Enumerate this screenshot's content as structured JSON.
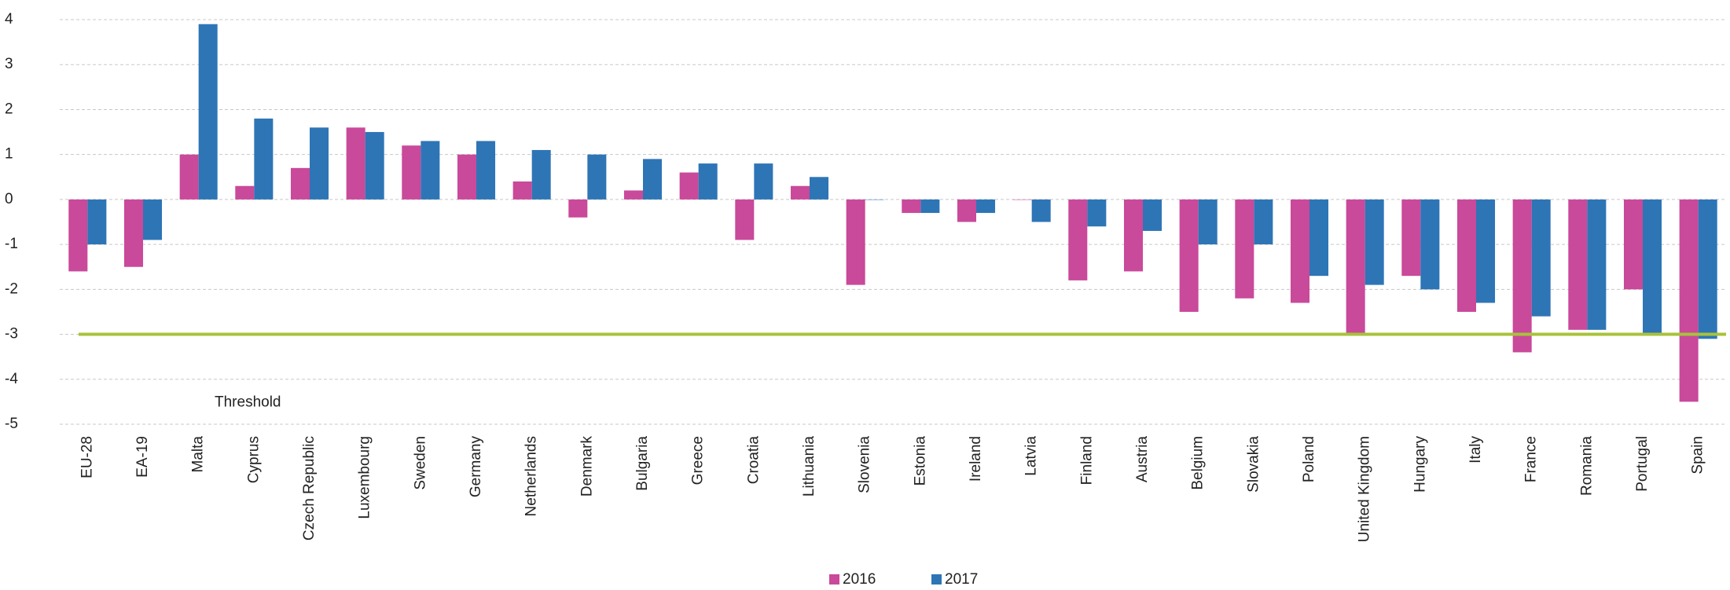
{
  "chart_data": {
    "type": "bar",
    "categories": [
      "EU-28",
      "EA-19",
      "Malta",
      "Cyprus",
      "Czech Republic",
      "Luxembourg",
      "Sweden",
      "Germany",
      "Netherlands",
      "Denmark",
      "Bulgaria",
      "Greece",
      "Croatia",
      "Lithuania",
      "Slovenia",
      "Estonia",
      "Ireland",
      "Latvia",
      "Finland",
      "Austria",
      "Belgium",
      "Slovakia",
      "Poland",
      "United Kingdom",
      "Hungary",
      "Italy",
      "France",
      "Romania",
      "Portugal",
      "Spain"
    ],
    "series": [
      {
        "name": "2016",
        "color": "#c9499a",
        "values": [
          -1.6,
          -1.5,
          1.0,
          0.3,
          0.7,
          1.6,
          1.2,
          1.0,
          0.4,
          -0.4,
          0.2,
          0.6,
          -0.9,
          0.3,
          -1.9,
          -0.3,
          -0.5,
          0.0,
          -1.8,
          -1.6,
          -2.5,
          -2.2,
          -2.3,
          -3.0,
          -1.7,
          -2.5,
          -3.4,
          -2.9,
          -2.0,
          -4.5
        ]
      },
      {
        "name": "2017",
        "color": "#2e75b6",
        "values": [
          -1.0,
          -0.9,
          3.9,
          1.8,
          1.6,
          1.5,
          1.3,
          1.3,
          1.1,
          1.0,
          0.9,
          0.8,
          0.8,
          0.5,
          0.0,
          -0.3,
          -0.3,
          -0.5,
          -0.6,
          -0.7,
          -1.0,
          -1.0,
          -1.7,
          -1.9,
          -2.0,
          -2.3,
          -2.6,
          -2.9,
          -3.0,
          -3.1
        ]
      }
    ],
    "ylim": [
      -5,
      4
    ],
    "yticks": [
      -5,
      -4,
      -3,
      -2,
      -1,
      0,
      1,
      2,
      3,
      4
    ],
    "grid": true,
    "threshold": {
      "value": -3,
      "label": "Threshold",
      "color": "#a8c23a"
    }
  }
}
